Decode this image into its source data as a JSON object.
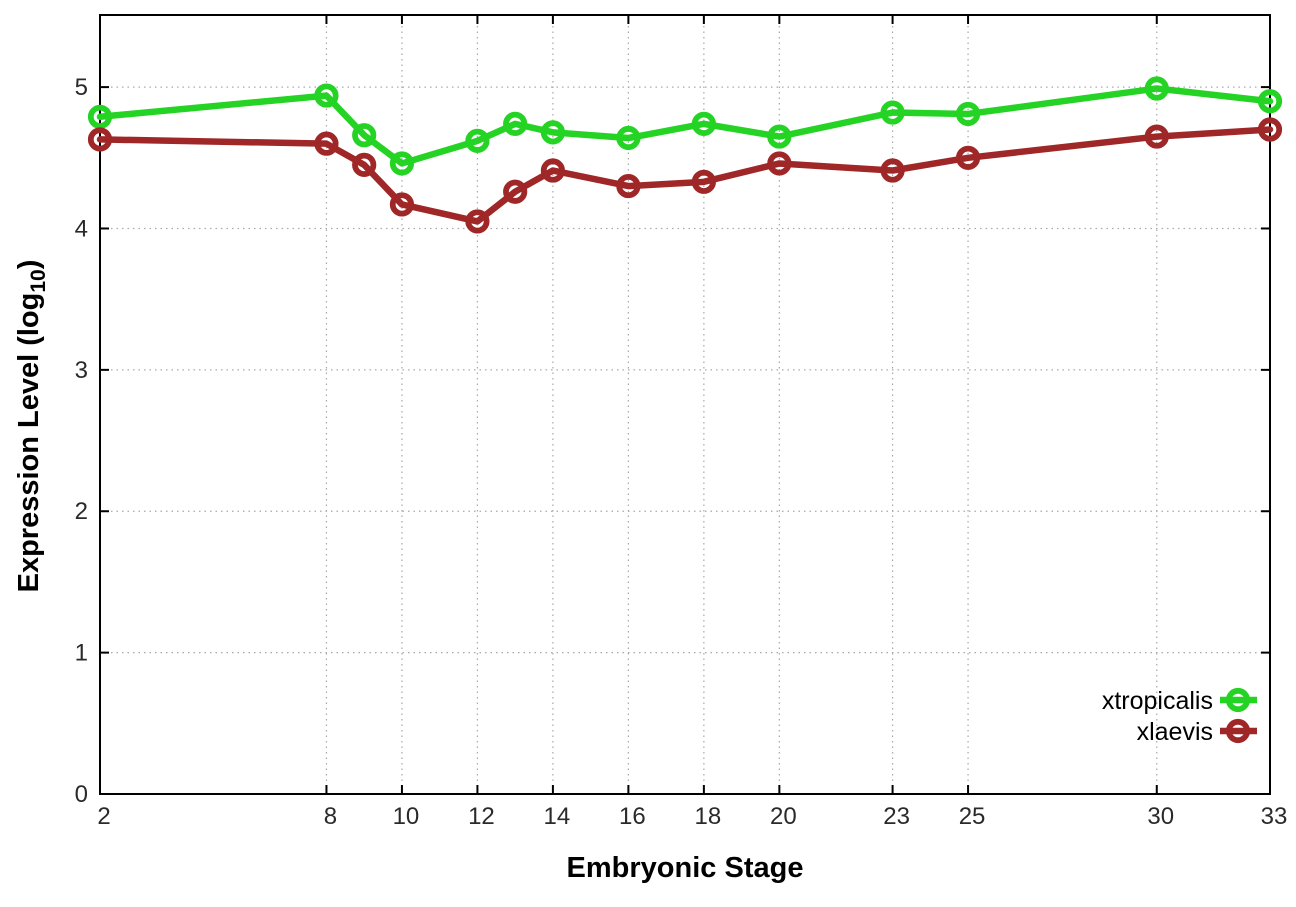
{
  "page": {
    "background": "#ffffff"
  },
  "chart_data": {
    "type": "line",
    "title": "",
    "xlabel": "Embryonic Stage",
    "ylabel": "Expression Level (log10)",
    "ylabel_parts": {
      "main": "Expression Level (log",
      "sub": "10",
      "close": ")"
    },
    "x": [
      2,
      8,
      9,
      10,
      12,
      13,
      14,
      16,
      18,
      20,
      23,
      25,
      30,
      33
    ],
    "x_ticks": [
      2,
      8,
      10,
      12,
      14,
      16,
      18,
      20,
      23,
      25,
      30,
      33
    ],
    "y_ticks": [
      0,
      1,
      2,
      3,
      4,
      5
    ],
    "xlim": [
      2,
      33
    ],
    "ylim": [
      0,
      5.5
    ],
    "grid": "dotted",
    "legend_position": "inside-bottom-right",
    "series": [
      {
        "name": "xtropicalis",
        "color": "#24d324",
        "marker": "open-circle",
        "values": [
          4.79,
          4.94,
          4.66,
          4.46,
          4.62,
          4.74,
          4.68,
          4.64,
          4.74,
          4.65,
          4.82,
          4.81,
          4.99,
          4.9
        ]
      },
      {
        "name": "xlaevis",
        "color": "#9f2727",
        "marker": "open-circle",
        "values": [
          4.63,
          4.6,
          4.45,
          4.17,
          4.05,
          4.26,
          4.41,
          4.3,
          4.33,
          4.46,
          4.41,
          4.5,
          4.65,
          4.7
        ]
      }
    ],
    "colors": {
      "grid": "#a8a8a8",
      "border": "#000000",
      "tick_text": "#2a2a2a"
    }
  }
}
